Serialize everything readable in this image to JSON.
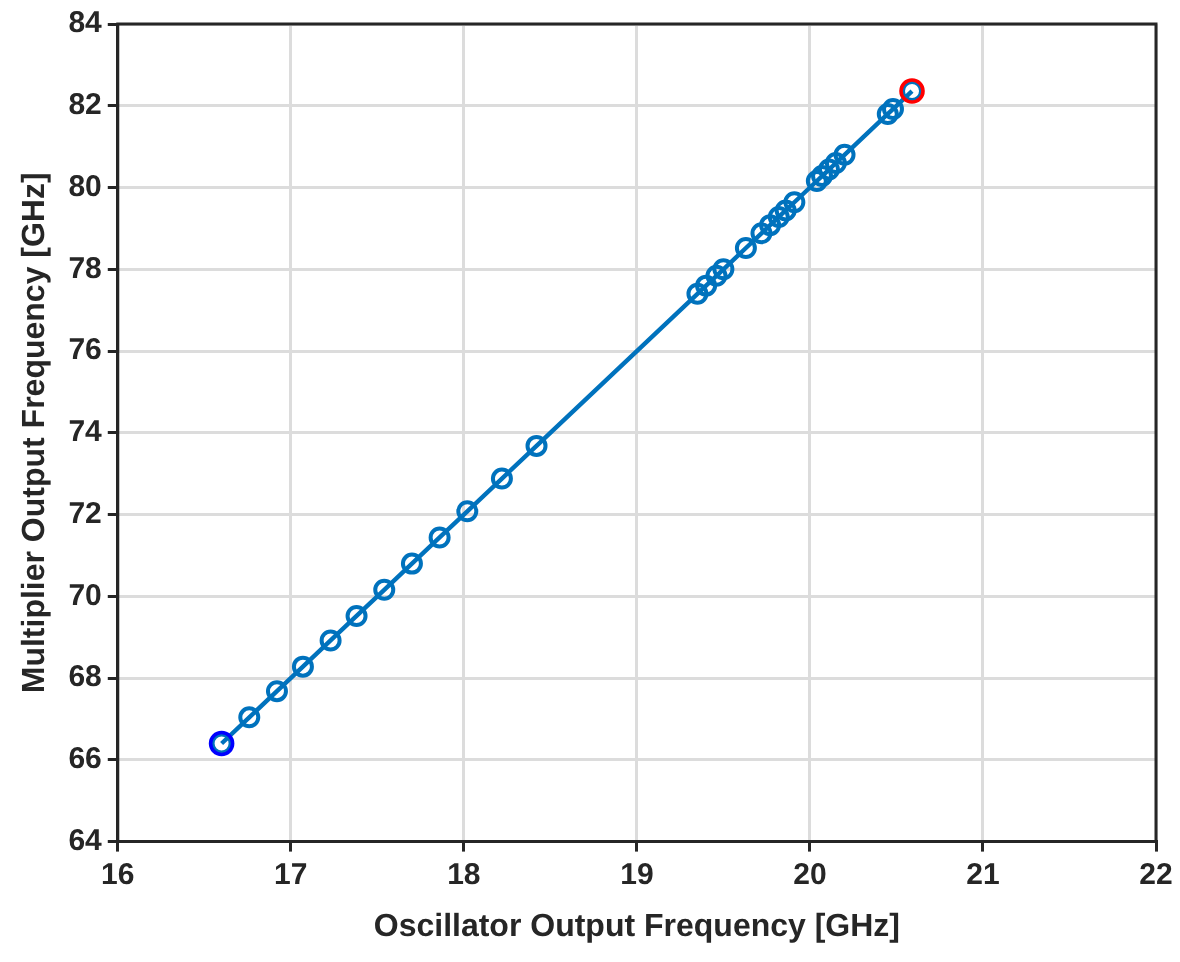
{
  "chart_data": {
    "type": "line",
    "xlabel": "Oscillator Output Frequency [GHz]",
    "ylabel": "Multiplier Output Frequency [GHz]",
    "xlim": [
      16,
      22
    ],
    "xticks": [
      16,
      17,
      18,
      19,
      20,
      21,
      22
    ],
    "ylim": [
      64,
      84
    ],
    "yticks": [
      64,
      66,
      68,
      70,
      72,
      74,
      76,
      78,
      80,
      82,
      84
    ],
    "grid": true,
    "legend": false,
    "marker": "circle",
    "line_style": "solid",
    "series": [
      {
        "type": "line",
        "color": "#0072bd",
        "x": [
          16.6,
          16.76,
          16.92,
          17.07,
          17.23,
          17.38,
          17.54,
          17.7,
          17.86,
          18.02,
          18.22,
          18.42,
          19.35,
          19.4,
          19.46,
          19.5,
          19.63,
          19.72,
          19.77,
          19.82,
          19.86,
          19.91,
          20.04,
          20.07,
          20.11,
          20.15,
          20.2,
          20.45,
          20.48,
          20.59
        ],
        "values": [
          66.4,
          67.04,
          67.68,
          68.28,
          68.92,
          69.52,
          70.16,
          70.8,
          71.44,
          72.08,
          72.88,
          73.68,
          77.4,
          77.6,
          77.84,
          78.0,
          78.52,
          78.88,
          79.08,
          79.28,
          79.44,
          79.64,
          80.16,
          80.28,
          80.44,
          80.6,
          80.8,
          81.8,
          81.92,
          82.36
        ]
      },
      {
        "type": "scatter",
        "color": "#0000ff",
        "x": [
          16.6
        ],
        "values": [
          66.4
        ]
      },
      {
        "type": "scatter",
        "color": "#ff0000",
        "x": [
          20.59
        ],
        "values": [
          82.36
        ]
      }
    ]
  }
}
